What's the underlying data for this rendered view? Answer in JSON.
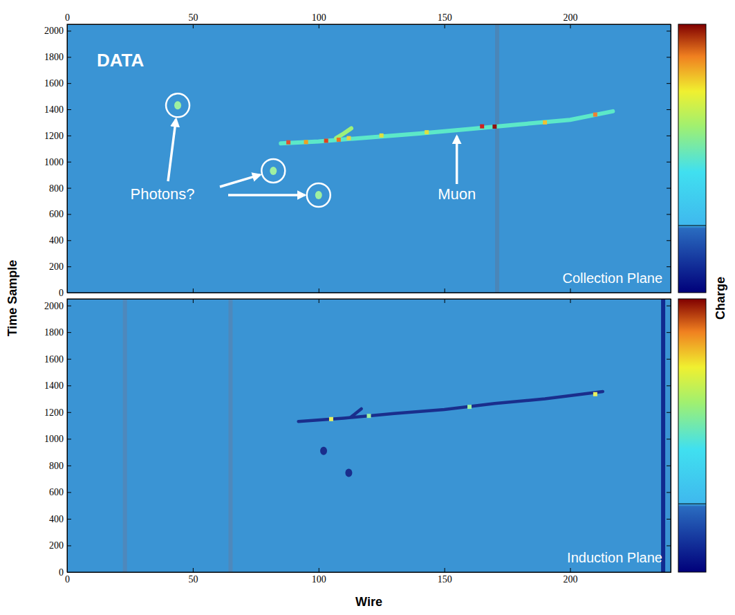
{
  "chart_data": [
    {
      "type": "event_display",
      "title": "Collection Plane",
      "label": "DATA",
      "xlim": [
        0,
        240
      ],
      "xticks": [
        0,
        50,
        100,
        150,
        200
      ],
      "ylim": [
        0,
        2050
      ],
      "yticks": [
        0,
        200,
        400,
        600,
        800,
        1000,
        1200,
        1400,
        1600,
        1800,
        2000
      ],
      "dead_wires": [
        {
          "wire": 171,
          "color": "#4a86b8"
        }
      ],
      "tracks": [
        {
          "name": "Muon",
          "color": "#5ce8c8",
          "x": [
            85,
            100,
            110,
            120,
            140,
            160,
            180,
            200,
            217
          ],
          "y": [
            1140,
            1155,
            1170,
            1185,
            1215,
            1250,
            1285,
            1320,
            1385
          ]
        },
        {
          "color": "#9ef07a",
          "x": [
            107,
            110,
            113
          ],
          "y": [
            1180,
            1215,
            1255
          ]
        }
      ],
      "hits": {
        "x": [
          88,
          95,
          103,
          108,
          112,
          125,
          143,
          165,
          170,
          190,
          210
        ],
        "y": [
          1148,
          1150,
          1160,
          1168,
          1180,
          1200,
          1225,
          1270,
          1268,
          1300,
          1360
        ],
        "colors": [
          "#e05030",
          "#f0a020",
          "#e04020",
          "#f07020",
          "#f0d040",
          "#e0e040",
          "#e0e040",
          "#d02020",
          "#901010",
          "#f0c030",
          "#f08030"
        ]
      },
      "showers": {
        "name": "Photons?",
        "color": "#9ef0a0",
        "x": [
          44,
          82,
          100
        ],
        "y": [
          1430,
          930,
          745
        ]
      }
    },
    {
      "type": "event_display",
      "title": "Induction Plane",
      "xlim": [
        0,
        240
      ],
      "xticks": [
        0,
        50,
        100,
        150,
        200
      ],
      "ylim": [
        0,
        2050
      ],
      "yticks": [
        0,
        200,
        400,
        600,
        800,
        1000,
        1200,
        1400,
        1600,
        1800,
        2000
      ],
      "dead_wires": [
        {
          "wire": 23,
          "color": "#4e88bc"
        },
        {
          "wire": 65,
          "color": "#4e88bc"
        },
        {
          "wire": 237,
          "color": "#102a90"
        }
      ],
      "tracks": [
        {
          "color": "#1a2e8c",
          "x": [
            92,
            110,
            130,
            150,
            170,
            190,
            213
          ],
          "y": [
            1130,
            1155,
            1190,
            1220,
            1265,
            1300,
            1355
          ]
        },
        {
          "color": "#1a2e8c",
          "x": [
            113,
            115,
            117
          ],
          "y": [
            1165,
            1195,
            1225
          ]
        }
      ],
      "hits": {
        "x": [
          105,
          120,
          160,
          210
        ],
        "y": [
          1148,
          1172,
          1240,
          1335
        ],
        "colors": [
          "#e8f060",
          "#a0f0a0",
          "#a0f0a0",
          "#e8f060"
        ]
      },
      "showers": {
        "color": "#1a2e8c",
        "x": [
          102,
          112
        ],
        "y": [
          910,
          745
        ]
      }
    }
  ],
  "x_label": "Wire",
  "y_label": "Time Sample",
  "colorbar_label": "Charge"
}
